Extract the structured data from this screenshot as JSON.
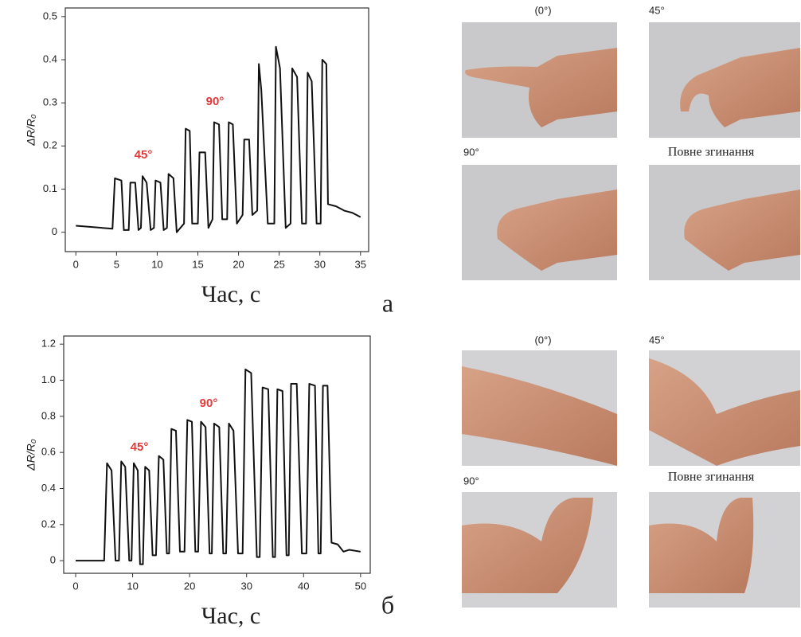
{
  "chart_data": [
    {
      "type": "line",
      "panel_label": "а",
      "x_label": "Час, с",
      "y_label": "ΔR/R₀",
      "xlim": [
        -1.3,
        36
      ],
      "xticks": [
        0,
        5,
        10,
        15,
        20,
        25,
        30,
        35
      ],
      "ylim": [
        -0.045,
        0.52
      ],
      "yticks": [
        0,
        0.1,
        0.2,
        0.3,
        0.4,
        0.5
      ],
      "annotations": [
        "45°",
        "90°"
      ],
      "series": [
        {
          "name": "ΔR/R₀",
          "color": "#111111",
          "x": [
            0,
            2,
            4.5,
            4.8,
            5.6,
            5.9,
            6.5,
            6.7,
            7.3,
            7.7,
            8.0,
            8.2,
            8.7,
            9.2,
            9.6,
            9.8,
            10.4,
            10.8,
            11.2,
            11.4,
            12.0,
            12.4,
            13.3,
            13.5,
            14.0,
            14.3,
            15.0,
            15.2,
            15.9,
            16.3,
            16.8,
            17.0,
            17.6,
            18.0,
            18.6,
            18.8,
            19.3,
            19.8,
            20.5,
            20.7,
            21.3,
            21.7,
            22.3,
            22.5,
            22.8,
            23.6,
            24.4,
            24.6,
            25.1,
            25.8,
            26.4,
            26.6,
            27.2,
            27.8,
            28.3,
            28.5,
            29.0,
            29.6,
            30.1,
            30.3,
            30.8,
            31.0,
            32,
            33,
            34,
            35
          ],
          "values": [
            0.015,
            0.012,
            0.008,
            0.125,
            0.12,
            0.005,
            0.005,
            0.115,
            0.115,
            0.005,
            0.01,
            0.13,
            0.115,
            0.005,
            0.01,
            0.12,
            0.115,
            0.005,
            0.01,
            0.135,
            0.125,
            0.0,
            0.02,
            0.24,
            0.235,
            0.02,
            0.02,
            0.185,
            0.185,
            0.01,
            0.03,
            0.255,
            0.25,
            0.03,
            0.03,
            0.255,
            0.25,
            0.02,
            0.04,
            0.215,
            0.215,
            0.04,
            0.05,
            0.39,
            0.33,
            0.02,
            0.02,
            0.43,
            0.38,
            0.01,
            0.02,
            0.38,
            0.36,
            0.02,
            0.02,
            0.37,
            0.35,
            0.02,
            0.02,
            0.4,
            0.39,
            0.065,
            0.06,
            0.05,
            0.045,
            0.035
          ]
        }
      ]
    },
    {
      "type": "line",
      "panel_label": "б",
      "x_label": "Час, с",
      "y_label": "ΔR/R₀",
      "xlim": [
        -2.1,
        51.7
      ],
      "xticks": [
        0,
        10,
        20,
        30,
        40,
        50
      ],
      "ylim": [
        -0.07,
        1.245
      ],
      "yticks": [
        0,
        0.2,
        0.4,
        0.6,
        0.8,
        {
          "value": 1,
          "label": "1.0"
        },
        1.2
      ],
      "annotations": [
        "45°",
        "90°"
      ],
      "series": [
        {
          "name": "ΔR/R₀",
          "color": "#111111",
          "x": [
            0,
            3,
            5.0,
            5.5,
            6.3,
            7.0,
            7.6,
            8.0,
            8.7,
            9.4,
            9.8,
            10.2,
            10.9,
            11.3,
            11.8,
            12.2,
            12.9,
            13.5,
            14.1,
            14.6,
            15.4,
            16.0,
            16.4,
            16.8,
            17.6,
            18.3,
            19.1,
            19.6,
            20.4,
            21.0,
            21.5,
            22.0,
            22.8,
            23.5,
            23.9,
            24.3,
            25.2,
            25.9,
            26.4,
            26.9,
            27.7,
            28.5,
            29.3,
            29.8,
            30.8,
            31.8,
            32.3,
            32.8,
            33.8,
            34.6,
            35.0,
            35.4,
            36.3,
            37.0,
            37.4,
            37.8,
            38.8,
            39.7,
            40.5,
            41.0,
            42.0,
            42.6,
            43.0,
            43.4,
            44.2,
            44.9,
            46,
            47,
            48,
            50
          ],
          "values": [
            0,
            0,
            0.0,
            0.54,
            0.5,
            0.0,
            0.0,
            0.55,
            0.52,
            0.0,
            0.0,
            0.54,
            0.5,
            -0.02,
            -0.02,
            0.52,
            0.5,
            0.03,
            0.03,
            0.58,
            0.56,
            0.04,
            0.04,
            0.73,
            0.72,
            0.05,
            0.05,
            0.78,
            0.77,
            0.05,
            0.05,
            0.77,
            0.74,
            0.04,
            0.04,
            0.76,
            0.74,
            0.04,
            0.04,
            0.76,
            0.72,
            0.04,
            0.04,
            1.06,
            1.04,
            0.02,
            0.02,
            0.96,
            0.95,
            0.02,
            0.02,
            0.95,
            0.94,
            0.03,
            0.03,
            0.98,
            0.98,
            0.04,
            0.04,
            0.98,
            0.97,
            0.04,
            0.04,
            0.97,
            0.97,
            0.1,
            0.09,
            0.05,
            0.06,
            0.05
          ]
        }
      ]
    }
  ],
  "photos": [
    {
      "labels": [
        "(0°)",
        "45°",
        "90°",
        "Повне згинання"
      ]
    },
    {
      "labels": [
        "(0°)",
        "45°",
        "90°",
        "Повне згинання"
      ]
    }
  ]
}
